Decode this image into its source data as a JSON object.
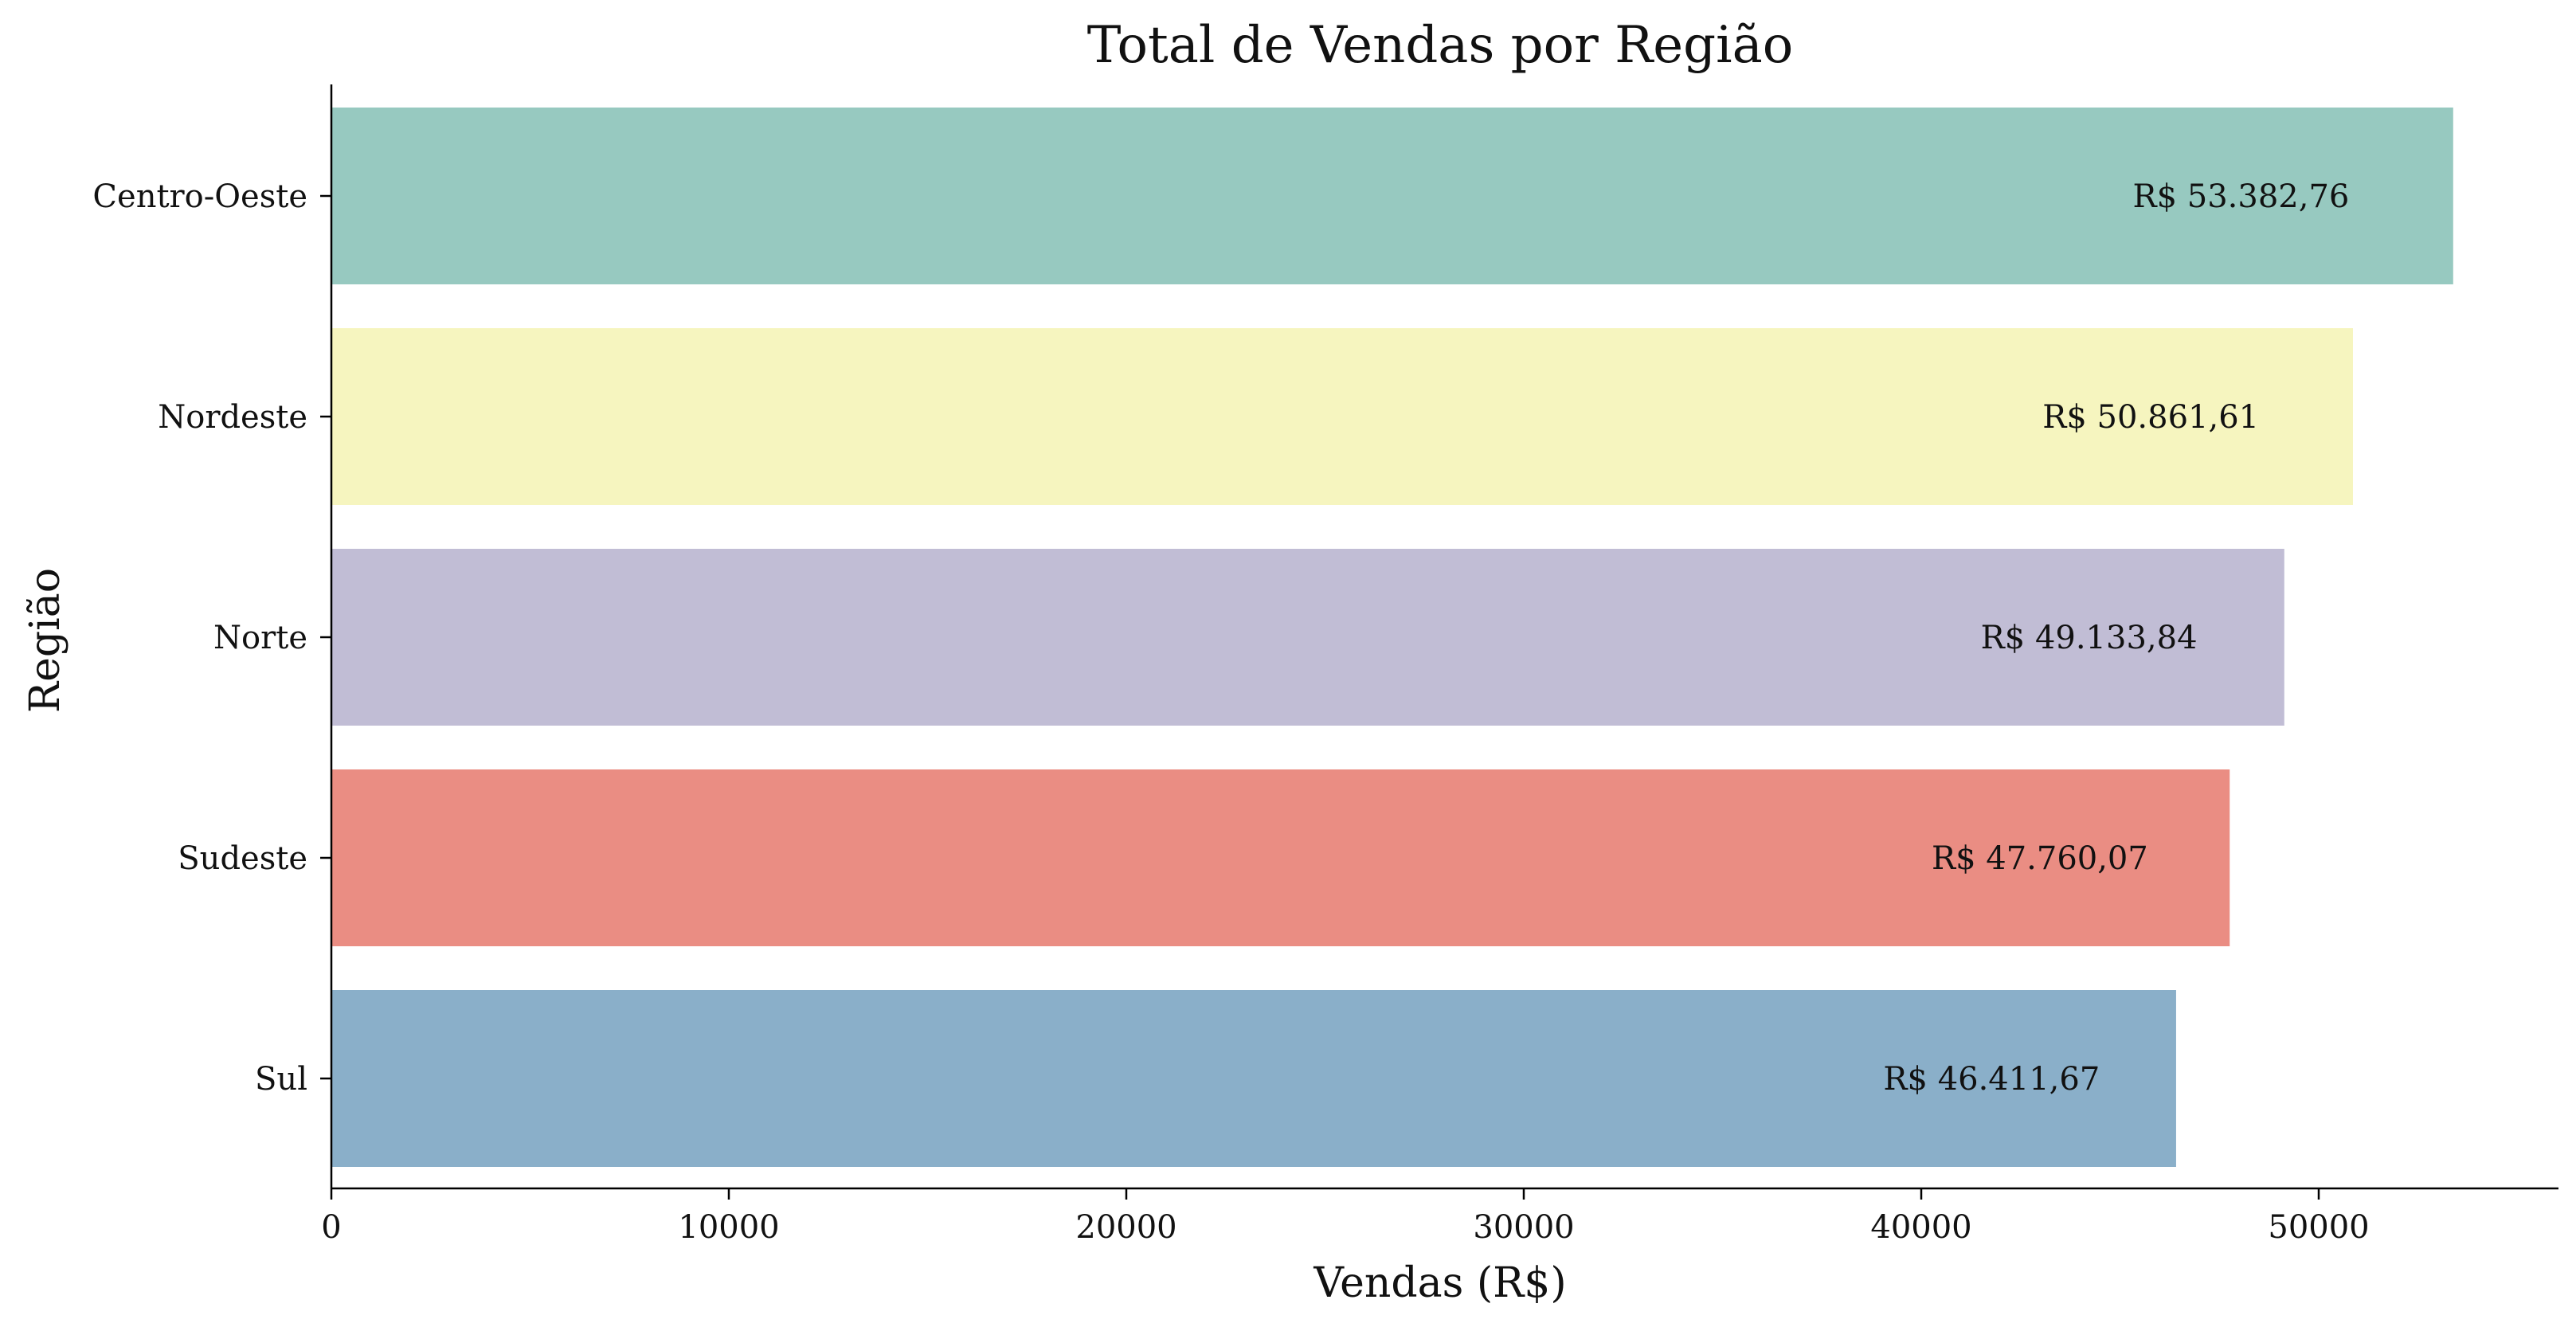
{
  "chart_data": {
    "type": "bar",
    "orientation": "horizontal",
    "title": "Total de Vendas por Região",
    "xlabel": "Vendas (R$)",
    "ylabel": "Região",
    "xlim": [
      0,
      56000
    ],
    "xticks": [
      0,
      10000,
      20000,
      30000,
      40000,
      50000
    ],
    "grid": false,
    "legend": "none",
    "categories": [
      "Centro-Oeste",
      "Nordeste",
      "Norte",
      "Sudeste",
      "Sul"
    ],
    "values": [
      53382.76,
      50861.61,
      49133.84,
      47760.07,
      46411.67
    ],
    "value_labels": [
      "R$ 53.382,76",
      "R$ 50.861,61",
      "R$ 49.133,84",
      "R$ 47.760,07",
      "R$ 46.411,67"
    ],
    "colors": [
      "#97c9c0",
      "#f6f5bf",
      "#c1bdd5",
      "#ea8d83",
      "#8aafc9"
    ]
  }
}
